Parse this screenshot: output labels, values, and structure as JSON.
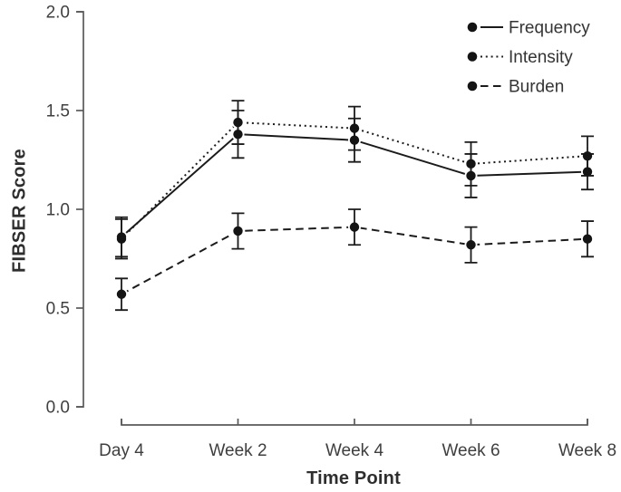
{
  "figure": {
    "background": "#ffffff",
    "colors": {
      "series_line": "#1b1b1b",
      "marker_fill": "#141414",
      "axis_line": "#5a5a5a",
      "tick_label_text": "#3f3f3f",
      "legend_text": "#343434",
      "axis_title_text": "#2e2e2e"
    }
  },
  "chart_data": {
    "type": "line",
    "title": "",
    "xlabel": "Time Point",
    "ylabel": "FIBSER Score",
    "categories": [
      "Day 4",
      "Week 2",
      "Week 4",
      "Week 6",
      "Week 8"
    ],
    "y_ticks": [
      "0.0",
      "0.5",
      "1.0",
      "1.5",
      "2.0"
    ],
    "ylim": [
      0.0,
      2.0
    ],
    "grid": false,
    "legend_position": "top-right",
    "marker": "filled-circle",
    "error_bars": true,
    "series": [
      {
        "name": "Frequency",
        "line_style": "solid",
        "values": [
          0.86,
          1.38,
          1.35,
          1.17,
          1.19
        ],
        "errors": [
          0.1,
          0.12,
          0.11,
          0.11,
          0.09
        ]
      },
      {
        "name": "Intensity",
        "line_style": "dotted",
        "values": [
          0.85,
          1.44,
          1.41,
          1.23,
          1.27
        ],
        "errors": [
          0.1,
          0.11,
          0.11,
          0.11,
          0.1
        ]
      },
      {
        "name": "Burden",
        "line_style": "dashed",
        "values": [
          0.57,
          0.89,
          0.91,
          0.82,
          0.85
        ],
        "errors": [
          0.08,
          0.09,
          0.09,
          0.09,
          0.09
        ]
      }
    ]
  }
}
